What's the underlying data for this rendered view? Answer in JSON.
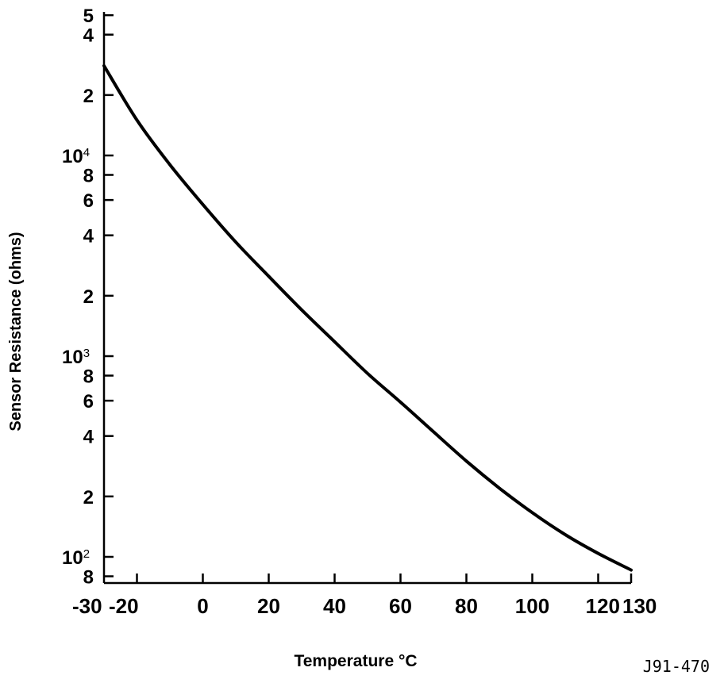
{
  "chart_data": {
    "type": "line",
    "title": "",
    "xlabel": "Temperature °C",
    "ylabel": "Sensor Resistance (ohms)",
    "x_scale": "linear",
    "y_scale": "log",
    "xlim": [
      -30,
      130
    ],
    "ylim": [
      80,
      50000
    ],
    "grid": false,
    "legend": "none",
    "x_ticks": [
      {
        "value": -30,
        "label": "-30"
      },
      {
        "value": -20,
        "label": "-20"
      },
      {
        "value": 0,
        "label": "0"
      },
      {
        "value": 20,
        "label": "20"
      },
      {
        "value": 40,
        "label": "40"
      },
      {
        "value": 60,
        "label": "60"
      },
      {
        "value": 80,
        "label": "80"
      },
      {
        "value": 100,
        "label": "100"
      },
      {
        "value": 120,
        "label": "120"
      },
      {
        "value": 130,
        "label": "130"
      }
    ],
    "y_ticks": [
      {
        "value": 50000,
        "label": "5",
        "sup": ""
      },
      {
        "value": 40000,
        "label": "4",
        "sup": ""
      },
      {
        "value": 20000,
        "label": "2",
        "sup": ""
      },
      {
        "value": 10000,
        "label": "10",
        "sup": "4"
      },
      {
        "value": 8000,
        "label": "8",
        "sup": ""
      },
      {
        "value": 6000,
        "label": "6",
        "sup": ""
      },
      {
        "value": 4000,
        "label": "4",
        "sup": ""
      },
      {
        "value": 2000,
        "label": "2",
        "sup": ""
      },
      {
        "value": 1000,
        "label": "10",
        "sup": "3"
      },
      {
        "value": 800,
        "label": "8",
        "sup": ""
      },
      {
        "value": 600,
        "label": "6",
        "sup": ""
      },
      {
        "value": 400,
        "label": "4",
        "sup": ""
      },
      {
        "value": 200,
        "label": "2",
        "sup": ""
      },
      {
        "value": 100,
        "label": "10",
        "sup": "2"
      },
      {
        "value": 80,
        "label": "8",
        "sup": ""
      }
    ],
    "series": [
      {
        "x": [
          -30,
          -20,
          -10,
          0,
          10,
          20,
          30,
          40,
          50,
          60,
          70,
          80,
          90,
          100,
          110,
          120,
          130
        ],
        "y": [
          28000,
          15000,
          9000,
          5700,
          3700,
          2500,
          1700,
          1180,
          820,
          590,
          420,
          300,
          220,
          166,
          129,
          104,
          86
        ]
      }
    ]
  },
  "figure_ref": "J91-470"
}
